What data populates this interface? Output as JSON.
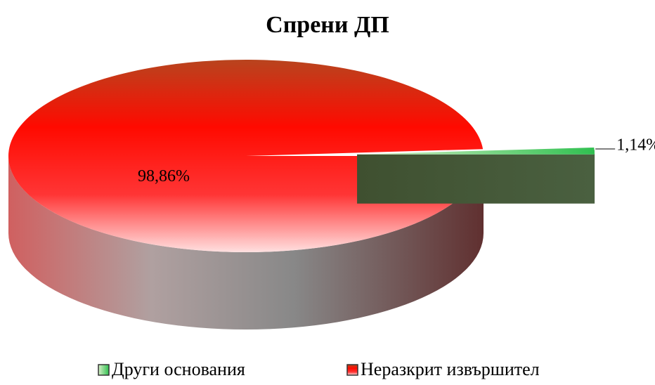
{
  "chart_data": {
    "type": "pie",
    "title": "Спрени ДП",
    "categories": [
      "Други основания",
      "Неразкрит извършител"
    ],
    "values": [
      1.14,
      98.86
    ],
    "value_labels": [
      "1,14%",
      "98,86%"
    ],
    "colors": [
      "#3a9a3a",
      "#ff0000"
    ],
    "legend": "bottom"
  }
}
